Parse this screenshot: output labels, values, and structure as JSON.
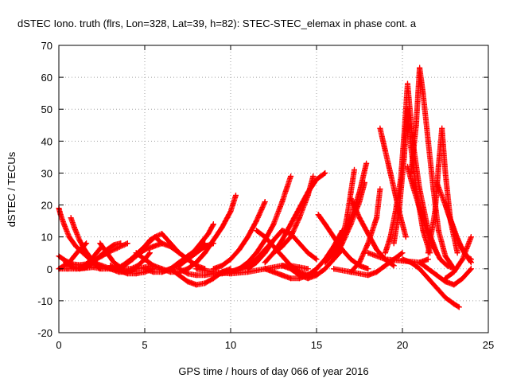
{
  "chart_data": {
    "type": "scatter",
    "title": "dSTEC Iono. truth (flrs, Lon=328, Lat=39, h=82): STEC-STEC_elemax in phase cont. a",
    "xlabel": "GPS time / hours of day 066 of year 2016",
    "ylabel": "dSTEC  / TECUs",
    "xlim": [
      0,
      25
    ],
    "ylim": [
      -20,
      70
    ],
    "xticks": [
      0,
      5,
      10,
      15,
      20,
      25
    ],
    "yticks": [
      -20,
      -10,
      0,
      10,
      20,
      30,
      40,
      50,
      60,
      70
    ],
    "xtick_labels": [
      "0",
      "5",
      "10",
      "15",
      "20",
      "25"
    ],
    "ytick_labels": [
      "-20",
      "-10",
      "0",
      "10",
      "20",
      "30",
      "40",
      "50",
      "60",
      "70"
    ],
    "grid": true,
    "marker": "+",
    "color": "#ff0000",
    "series": [
      {
        "x": [
          0.0,
          0.1,
          0.3,
          0.6,
          1.0,
          1.4,
          1.8,
          2.1,
          2.4
        ],
        "y": [
          19,
          17,
          14,
          10,
          7,
          5,
          3,
          1.5,
          0
        ]
      },
      {
        "x": [
          0.0,
          0.3,
          0.6,
          0.9,
          1.2,
          1.6
        ],
        "y": [
          0,
          1,
          2,
          4,
          6,
          8
        ]
      },
      {
        "x": [
          0.7,
          0.9,
          1.2,
          1.5,
          1.9,
          2.3
        ],
        "y": [
          16,
          13,
          9,
          6,
          3,
          1
        ]
      },
      {
        "x": [
          0.0,
          0.4,
          0.8,
          1.2,
          1.6,
          2.0,
          2.5,
          3.0,
          3.4,
          3.8,
          4.0
        ],
        "y": [
          4,
          2.5,
          1.5,
          1.2,
          1.5,
          2.5,
          4,
          5.5,
          6.5,
          7.5,
          8
        ]
      },
      {
        "x": [
          0.4,
          0.8,
          1.2,
          1.6,
          2.0,
          2.4,
          2.8,
          3.2,
          3.6
        ],
        "y": [
          2,
          0.5,
          0,
          0.5,
          2,
          4,
          6,
          7.5,
          8
        ]
      },
      {
        "x": [
          0.0,
          0.5,
          1.0,
          1.5,
          2.0,
          2.5,
          3.0,
          3.5
        ],
        "y": [
          0,
          0,
          0,
          0.2,
          0.5,
          0,
          0,
          0
        ]
      },
      {
        "x": [
          1.2,
          1.6,
          1.9,
          2.2,
          2.5
        ],
        "y": [
          0,
          1.5,
          3,
          5,
          7
        ]
      },
      {
        "x": [
          2.4,
          2.8,
          3.2,
          3.7,
          4.2,
          4.6,
          5.0,
          5.3
        ],
        "y": [
          8,
          5,
          2,
          0,
          0,
          1,
          3,
          5
        ]
      },
      {
        "x": [
          2.0,
          2.5,
          3.0,
          3.5,
          4.0,
          4.5,
          5.0,
          5.5
        ],
        "y": [
          2,
          1,
          0,
          -1,
          -1,
          0,
          0.5,
          1
        ]
      },
      {
        "x": [
          3.0,
          3.5,
          4.0,
          4.5,
          5.0,
          5.5
        ],
        "y": [
          1,
          -0.5,
          -1.5,
          -1.5,
          -1,
          0
        ]
      },
      {
        "x": [
          3.3,
          3.7,
          4.2,
          4.6,
          5.0,
          5.3,
          5.6,
          6.0
        ],
        "y": [
          0,
          1,
          3,
          5,
          7,
          9,
          10,
          8
        ]
      },
      {
        "x": [
          3.8,
          4.3,
          4.8,
          5.2,
          5.6,
          6.0,
          6.5,
          7.0
        ],
        "y": [
          1,
          3,
          6,
          8,
          10,
          11,
          8,
          5
        ]
      },
      {
        "x": [
          4.0,
          4.5,
          5.0,
          5.5,
          6.0,
          6.5,
          7.0,
          7.5,
          8.0,
          8.5
        ],
        "y": [
          2,
          4,
          6,
          7,
          8,
          7,
          5,
          3,
          1,
          0
        ]
      },
      {
        "x": [
          5.0,
          5.5,
          6.0,
          6.5,
          7.0,
          7.5,
          8.0,
          8.5,
          9.0
        ],
        "y": [
          0,
          -1,
          -1,
          0,
          1,
          3,
          5,
          7,
          8
        ]
      },
      {
        "x": [
          4.5,
          5.0,
          5.5,
          6.0,
          6.5,
          7.0,
          7.5,
          8.0,
          8.5
        ],
        "y": [
          5,
          3,
          1,
          0,
          -1,
          -1,
          0,
          2,
          5
        ]
      },
      {
        "x": [
          6.0,
          6.5,
          7.0,
          7.5,
          8.0,
          8.5
        ],
        "y": [
          -1,
          0,
          2,
          4,
          6,
          8
        ]
      },
      {
        "x": [
          7.5,
          7.8,
          8.1,
          8.4,
          8.7,
          9.0
        ],
        "y": [
          3,
          5,
          7,
          9,
          11,
          14
        ]
      },
      {
        "x": [
          6.5,
          7.0,
          7.5,
          8.0,
          8.5,
          9.0,
          9.5,
          10.0
        ],
        "y": [
          0,
          -2,
          -4,
          -5,
          -4.5,
          -3,
          -1,
          0
        ]
      },
      {
        "x": [
          7.0,
          7.5,
          8.0,
          8.5,
          9.0,
          9.5,
          10.0,
          10.5,
          11.0
        ],
        "y": [
          0,
          -1.5,
          -2,
          -2,
          -1.5,
          -1.5,
          -1,
          0,
          1
        ]
      },
      {
        "x": [
          8.0,
          8.5,
          9.0,
          9.5,
          10.0,
          10.3
        ],
        "y": [
          2,
          5,
          9,
          13,
          18,
          23
        ]
      },
      {
        "x": [
          9.0,
          9.5,
          10.0,
          10.5,
          11.0,
          11.5,
          12.0
        ],
        "y": [
          0,
          1,
          3,
          6,
          10,
          15,
          21
        ]
      },
      {
        "x": [
          8.0,
          9.0,
          10.0,
          11.0,
          12.0,
          13.0,
          13.5,
          14.0,
          14.5
        ],
        "y": [
          0,
          -1,
          -1.5,
          -1,
          0,
          1,
          1,
          0.5,
          0
        ]
      },
      {
        "x": [
          9.5,
          10.0,
          10.5,
          11.0,
          11.5,
          12.0,
          12.5,
          13.0
        ],
        "y": [
          -1,
          -1,
          0,
          1,
          3,
          6,
          9,
          12
        ]
      },
      {
        "x": [
          10.5,
          11.0,
          11.5,
          12.0,
          12.5,
          13.0,
          13.5
        ],
        "y": [
          0,
          2,
          5,
          9,
          14,
          21,
          29
        ]
      },
      {
        "x": [
          11.0,
          11.5,
          12.0,
          12.5,
          13.0,
          13.5,
          14.0,
          14.5,
          15.0
        ],
        "y": [
          0,
          2,
          5,
          9,
          12,
          11,
          8,
          5,
          3
        ]
      },
      {
        "x": [
          12.0,
          12.5,
          13.0,
          13.5,
          14.0,
          14.5,
          15.0,
          15.5
        ],
        "y": [
          2,
          5,
          9,
          14,
          19,
          24,
          28,
          30
        ]
      },
      {
        "x": [
          11.5,
          12.0,
          12.5,
          13.0,
          13.5,
          14.0,
          14.5,
          15.0
        ],
        "y": [
          12,
          10,
          7,
          4,
          1,
          -1,
          -2,
          -1
        ]
      },
      {
        "x": [
          12.5,
          13.0,
          13.5,
          14.0,
          14.5,
          14.8
        ],
        "y": [
          5,
          7,
          10,
          16,
          23,
          29
        ]
      },
      {
        "x": [
          12.0,
          12.5,
          13.0,
          13.5,
          14.0,
          14.5,
          15.0
        ],
        "y": [
          0,
          -1,
          -2,
          -3,
          -3,
          -2,
          0
        ]
      },
      {
        "x": [
          13.0,
          13.5,
          14.0,
          14.5,
          15.0,
          15.5,
          16.0,
          16.5
        ],
        "y": [
          1,
          0,
          -2,
          -3,
          -2,
          0,
          3,
          6
        ]
      },
      {
        "x": [
          14.5,
          15.0,
          15.5,
          16.0,
          16.5
        ],
        "y": [
          -2,
          0,
          3,
          7,
          12
        ]
      },
      {
        "x": [
          15.1,
          15.5,
          16.0,
          16.5,
          17.0,
          17.5,
          18.0
        ],
        "y": [
          17,
          14,
          10,
          6,
          3,
          1,
          0
        ]
      },
      {
        "x": [
          15.5,
          16.0,
          16.5,
          17.0,
          17.5,
          17.9
        ],
        "y": [
          2,
          5,
          10,
          16,
          24,
          33
        ]
      },
      {
        "x": [
          16.0,
          16.5,
          17.0,
          17.5,
          17.8
        ],
        "y": [
          3,
          8,
          14,
          21,
          27
        ]
      },
      {
        "x": [
          16.5,
          16.8,
          17.0,
          17.2
        ],
        "y": [
          9,
          17,
          24,
          31
        ]
      },
      {
        "x": [
          17.0,
          17.5,
          18.0,
          18.5,
          19.0,
          19.5
        ],
        "y": [
          22,
          16,
          11,
          6,
          3,
          1
        ]
      },
      {
        "x": [
          16.0,
          17.0,
          18.0,
          18.5,
          19.0,
          19.5,
          20.0
        ],
        "y": [
          0,
          -1,
          -2,
          -1,
          1,
          3,
          5
        ]
      },
      {
        "x": [
          17.0,
          17.5,
          18.0,
          18.5,
          18.7
        ],
        "y": [
          -1,
          2,
          8,
          16,
          25
        ]
      },
      {
        "x": [
          18.7,
          19.0,
          19.3,
          19.6,
          19.9,
          20.2
        ],
        "y": [
          44,
          37,
          30,
          23,
          16,
          10
        ]
      },
      {
        "x": [
          19.0,
          19.3,
          19.6,
          19.9,
          20.1,
          20.3,
          20.6,
          21.0,
          21.5,
          22.0
        ],
        "y": [
          5,
          10,
          18,
          28,
          42,
          58,
          40,
          25,
          12,
          5
        ]
      },
      {
        "x": [
          19.5,
          19.8,
          20.1,
          20.3,
          20.5,
          20.8,
          21.2,
          21.6
        ],
        "y": [
          8,
          18,
          35,
          50,
          38,
          25,
          12,
          5
        ]
      },
      {
        "x": [
          20.0,
          20.5,
          21.0,
          21.5,
          22.0,
          22.5,
          23.0,
          23.3
        ],
        "y": [
          3,
          2,
          0,
          -3,
          -6,
          -9,
          -11,
          -12
        ]
      },
      {
        "x": [
          20.3,
          20.6,
          21.0,
          21.4,
          21.8,
          22.2,
          22.6,
          23.0
        ],
        "y": [
          32,
          26,
          19,
          12,
          7,
          3,
          1,
          0
        ]
      },
      {
        "x": [
          20.5,
          20.8,
          21.0,
          21.2,
          21.5,
          21.8,
          22.1,
          22.5,
          23.0
        ],
        "y": [
          30,
          45,
          63,
          55,
          40,
          25,
          12,
          4,
          0
        ]
      },
      {
        "x": [
          21.5,
          21.9,
          22.1,
          22.3,
          22.5,
          22.8,
          23.2
        ],
        "y": [
          5,
          18,
          32,
          44,
          30,
          15,
          5
        ]
      },
      {
        "x": [
          22.0,
          22.5,
          23.0,
          23.5,
          24.0
        ],
        "y": [
          27,
          20,
          12,
          6,
          2
        ]
      },
      {
        "x": [
          22.5,
          22.9,
          23.3,
          23.7,
          24.0
        ],
        "y": [
          20,
          14,
          8,
          4,
          3
        ]
      },
      {
        "x": [
          21.0,
          21.5,
          22.0,
          22.5,
          23.0,
          23.5,
          24.0
        ],
        "y": [
          2,
          0,
          -2,
          -4,
          -5,
          -3,
          0
        ]
      },
      {
        "x": [
          22.5,
          23.0,
          23.5,
          24.0
        ],
        "y": [
          -3,
          -1,
          3,
          10
        ]
      },
      {
        "x": [
          18.0,
          19.0,
          20.0,
          21.0,
          21.5
        ],
        "y": [
          5,
          3,
          2.5,
          2,
          3
        ]
      }
    ]
  }
}
